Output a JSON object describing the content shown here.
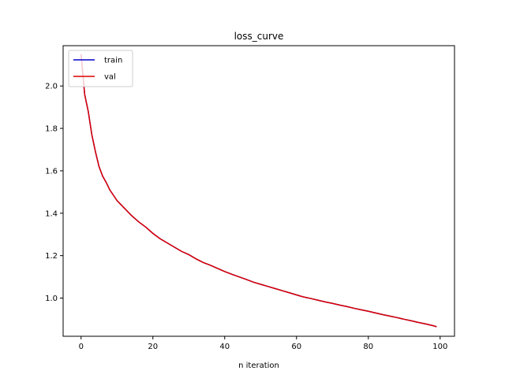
{
  "chart_data": {
    "type": "line",
    "title": "loss_curve",
    "xlabel": "n iteration",
    "ylabel": "",
    "xlim": [
      -5,
      104
    ],
    "ylim": [
      0.82,
      2.19
    ],
    "xticks": [
      0,
      20,
      40,
      60,
      80,
      100
    ],
    "yticks": [
      1.0,
      1.2,
      1.4,
      1.6,
      1.8,
      2.0
    ],
    "ytick_labels": [
      "1.0",
      "1.2",
      "1.4",
      "1.6",
      "1.8",
      "2.0"
    ],
    "grid": false,
    "legend_position": "top-left",
    "x": [
      0,
      1,
      2,
      3,
      4,
      5,
      6,
      7,
      8,
      9,
      10,
      12,
      14,
      16,
      18,
      20,
      22,
      24,
      26,
      28,
      30,
      32,
      34,
      36,
      38,
      40,
      42,
      44,
      46,
      48,
      50,
      52,
      54,
      56,
      58,
      60,
      62,
      64,
      66,
      68,
      70,
      72,
      74,
      76,
      78,
      80,
      82,
      84,
      86,
      88,
      90,
      92,
      94,
      96,
      98,
      99
    ],
    "series": [
      {
        "name": "train",
        "color": "#0000cc",
        "values": [
          2.15,
          1.96,
          1.88,
          1.77,
          1.69,
          1.62,
          1.575,
          1.545,
          1.51,
          1.485,
          1.46,
          1.425,
          1.39,
          1.36,
          1.335,
          1.305,
          1.28,
          1.26,
          1.24,
          1.22,
          1.205,
          1.185,
          1.168,
          1.155,
          1.14,
          1.125,
          1.112,
          1.1,
          1.088,
          1.075,
          1.065,
          1.055,
          1.045,
          1.035,
          1.025,
          1.015,
          1.005,
          0.998,
          0.99,
          0.982,
          0.975,
          0.967,
          0.96,
          0.952,
          0.945,
          0.938,
          0.93,
          0.922,
          0.915,
          0.908,
          0.9,
          0.893,
          0.885,
          0.878,
          0.87,
          0.865
        ]
      },
      {
        "name": "val",
        "color": "#dd0000",
        "values": [
          2.15,
          1.96,
          1.88,
          1.77,
          1.69,
          1.62,
          1.575,
          1.545,
          1.51,
          1.485,
          1.46,
          1.425,
          1.39,
          1.36,
          1.335,
          1.305,
          1.28,
          1.26,
          1.24,
          1.22,
          1.205,
          1.185,
          1.168,
          1.155,
          1.14,
          1.125,
          1.112,
          1.1,
          1.088,
          1.075,
          1.065,
          1.055,
          1.045,
          1.035,
          1.025,
          1.015,
          1.005,
          0.998,
          0.99,
          0.982,
          0.975,
          0.967,
          0.96,
          0.952,
          0.945,
          0.938,
          0.93,
          0.922,
          0.915,
          0.908,
          0.9,
          0.893,
          0.885,
          0.878,
          0.87,
          0.865
        ]
      }
    ]
  }
}
